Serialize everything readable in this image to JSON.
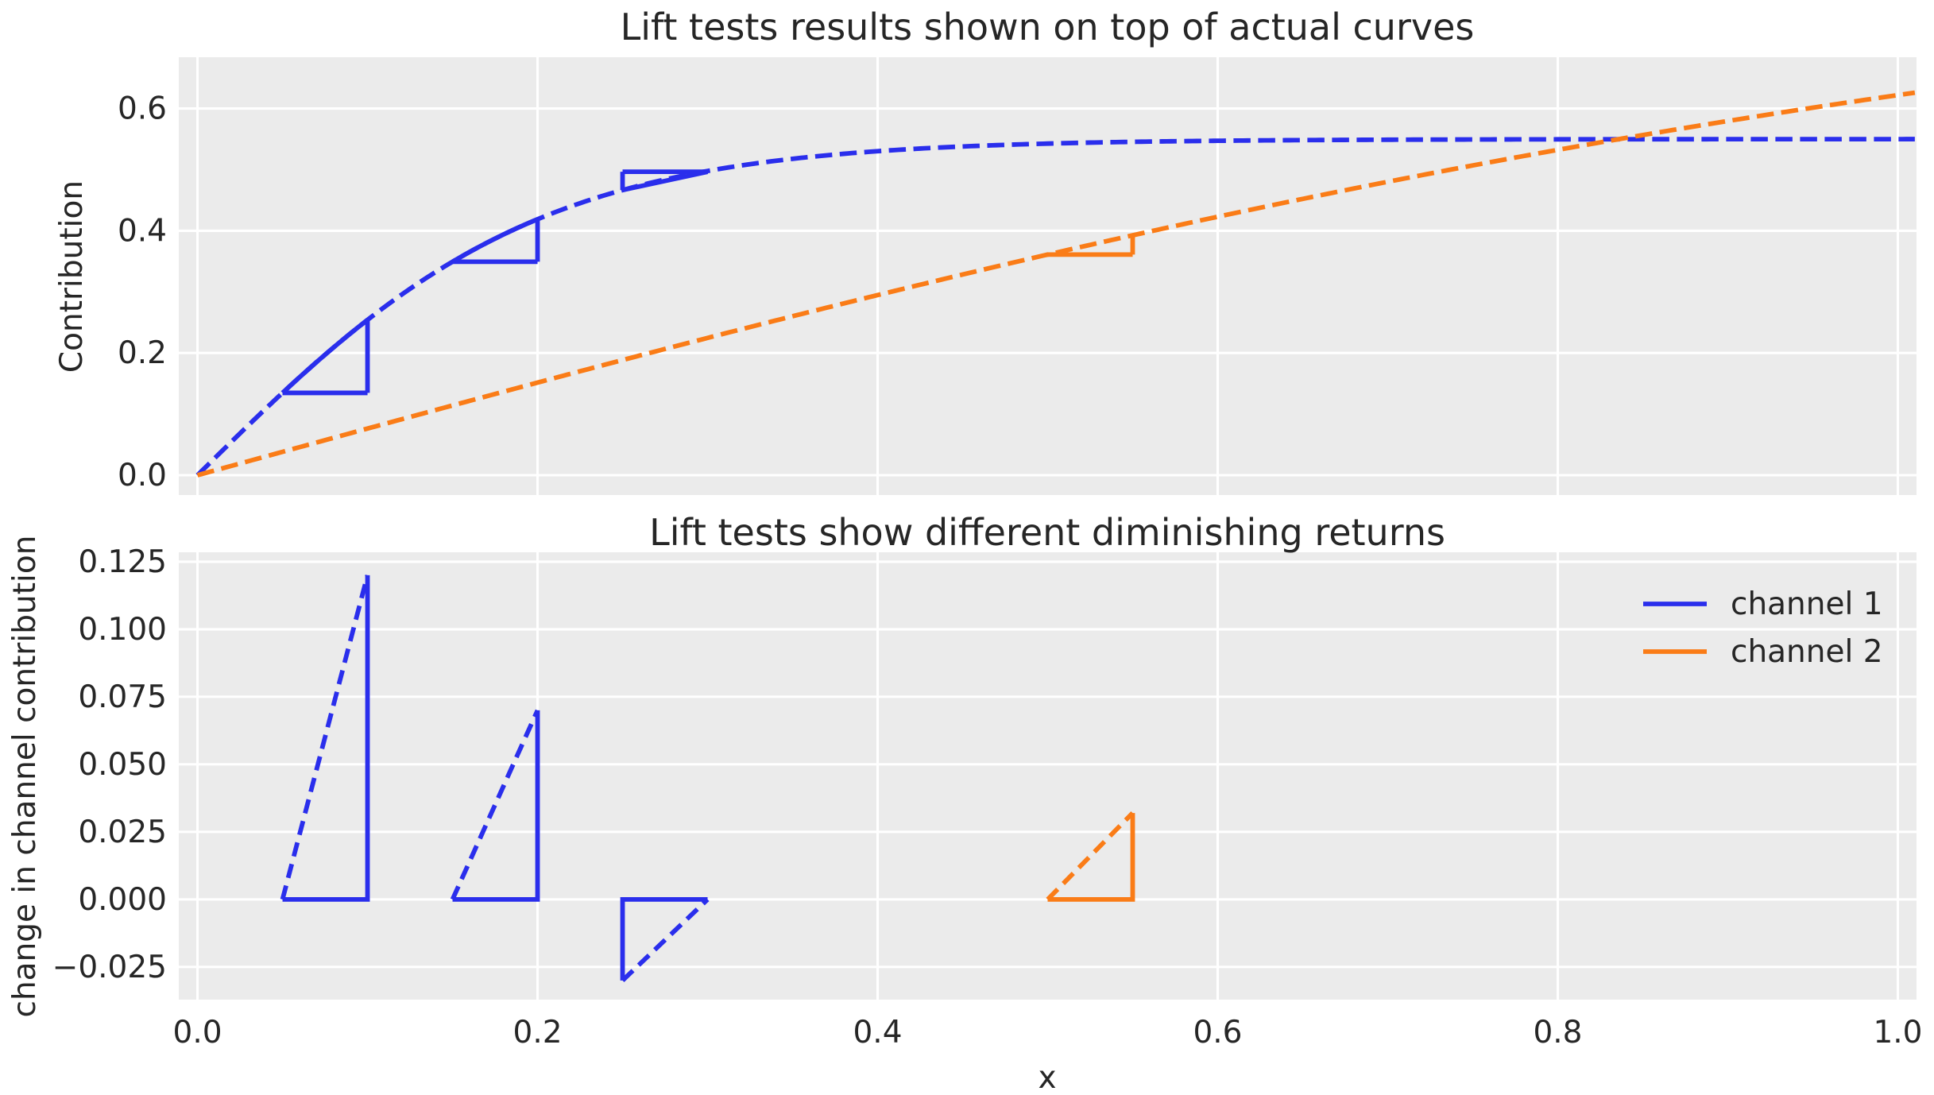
{
  "figure": {
    "background": "#ffffff",
    "axes_background": "#ebebeb",
    "grid_color": "#ffffff",
    "text_color": "#262626",
    "channel_colors": {
      "channel 1": "#2a2eec",
      "channel 2": "#fa7c17"
    }
  },
  "chart_data": [
    {
      "type": "line",
      "title": "Lift tests results shown on top of actual curves",
      "ylabel": "Contribution",
      "xlabel": "",
      "xlim": [
        -0.011,
        1.011
      ],
      "ylim": [
        -0.0325,
        0.684
      ],
      "grid": true,
      "legend_position": "none",
      "xticks": [
        0.0,
        0.2,
        0.4,
        0.6,
        0.8,
        1.0
      ],
      "xticklabels": [],
      "yticks": [
        0.0,
        0.2,
        0.4,
        0.6
      ],
      "yticklabels": [
        "0.0",
        "0.2",
        "0.4",
        "0.6"
      ],
      "series": [
        {
          "name": "channel 1",
          "color": "#2a2eec",
          "linestyle": "dashed",
          "shape": "saturating",
          "formula": "y = 0.55 * tanh(5.0 * x)",
          "a": 0.55,
          "b": 5.0,
          "x_start": 0.0,
          "x_end": 1.011,
          "sample_points": {
            "x": [
              0.0,
              0.05,
              0.1,
              0.15,
              0.2,
              0.25,
              0.3,
              0.4,
              0.5,
              0.8,
              1.0
            ],
            "y": [
              0.0,
              0.135,
              0.254,
              0.349,
              0.42,
              0.467,
              0.499,
              0.53,
              0.546,
              0.55,
              0.55
            ]
          }
        },
        {
          "name": "channel 2",
          "color": "#fa7c17",
          "linestyle": "dashed",
          "shape": "near-linear",
          "formula": "y = 0.90 * tanh(0.85 * x)",
          "a": 0.9,
          "b": 0.85,
          "x_start": 0.0,
          "x_end": 1.011,
          "sample_points": {
            "x": [
              0.0,
              0.2,
              0.4,
              0.5,
              0.55,
              0.8,
              1.0
            ],
            "y": [
              0.0,
              0.151,
              0.293,
              0.361,
              0.393,
              0.531,
              0.625
            ]
          }
        }
      ],
      "lift_tests": [
        {
          "channel": "channel 1",
          "x": 0.05,
          "delta_x": 0.05,
          "delta_y": 0.12,
          "overlay": "curve"
        },
        {
          "channel": "channel 1",
          "x": 0.15,
          "delta_x": 0.05,
          "delta_y": 0.07,
          "overlay": "curve"
        },
        {
          "channel": "channel 1",
          "x": 0.25,
          "delta_x": 0.05,
          "delta_y": -0.03,
          "overlay": "line"
        },
        {
          "channel": "channel 2",
          "x": 0.5,
          "delta_x": 0.05,
          "delta_y": 0.032,
          "overlay": "none"
        }
      ]
    },
    {
      "type": "line",
      "title": "Lift tests show different diminishing returns",
      "ylabel": "change in channel contribution",
      "xlabel": "x",
      "xlim": [
        -0.011,
        1.011
      ],
      "ylim": [
        -0.0371,
        0.1285
      ],
      "grid": true,
      "xticks": [
        0.0,
        0.2,
        0.4,
        0.6,
        0.8,
        1.0
      ],
      "xticklabels": [
        "0.0",
        "0.2",
        "0.4",
        "0.6",
        "0.8",
        "1.0"
      ],
      "yticks": [
        0.125,
        0.1,
        0.075,
        0.05,
        0.025,
        0.0,
        -0.025
      ],
      "yticklabels": [
        "0.125",
        "0.100",
        "0.075",
        "0.050",
        "0.025",
        "0.000",
        "−0.025"
      ],
      "triangles": [
        {
          "channel": "channel 1",
          "x": 0.05,
          "delta_x": 0.05,
          "delta_y": 0.12
        },
        {
          "channel": "channel 1",
          "x": 0.15,
          "delta_x": 0.05,
          "delta_y": 0.07
        },
        {
          "channel": "channel 1",
          "x": 0.25,
          "delta_x": 0.05,
          "delta_y": -0.03
        },
        {
          "channel": "channel 2",
          "x": 0.5,
          "delta_x": 0.05,
          "delta_y": 0.032
        }
      ],
      "legend": {
        "position": "upper right",
        "entries": [
          {
            "label": "channel 1",
            "color": "#2a2eec"
          },
          {
            "label": "channel 2",
            "color": "#fa7c17"
          }
        ]
      }
    }
  ]
}
